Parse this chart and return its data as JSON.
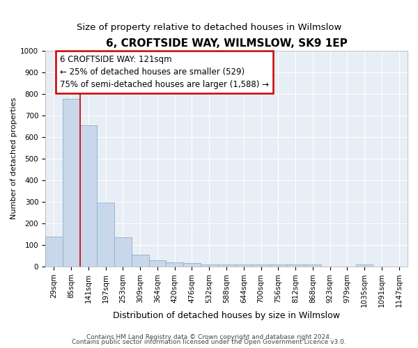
{
  "title": "6, CROFTSIDE WAY, WILMSLOW, SK9 1EP",
  "subtitle": "Size of property relative to detached houses in Wilmslow",
  "xlabel": "Distribution of detached houses by size in Wilmslow",
  "ylabel": "Number of detached properties",
  "bar_labels": [
    "29sqm",
    "85sqm",
    "141sqm",
    "197sqm",
    "253sqm",
    "309sqm",
    "364sqm",
    "420sqm",
    "476sqm",
    "532sqm",
    "588sqm",
    "644sqm",
    "700sqm",
    "756sqm",
    "812sqm",
    "868sqm",
    "923sqm",
    "979sqm",
    "1035sqm",
    "1091sqm",
    "1147sqm"
  ],
  "bar_values": [
    140,
    775,
    655,
    295,
    135,
    55,
    30,
    18,
    15,
    8,
    8,
    8,
    8,
    8,
    8,
    8,
    0,
    0,
    8,
    0,
    0
  ],
  "bar_color": "#c8d8ea",
  "bar_edge_color": "#8aaec8",
  "vline_x": 1.5,
  "vline_color": "#cc0000",
  "annotation_text": "6 CROFTSIDE WAY: 121sqm\n← 25% of detached houses are smaller (529)\n75% of semi-detached houses are larger (1,588) →",
  "annotation_box_facecolor": "#ffffff",
  "annotation_box_edgecolor": "#cc0000",
  "ylim": [
    0,
    1000
  ],
  "yticks": [
    0,
    100,
    200,
    300,
    400,
    500,
    600,
    700,
    800,
    900,
    1000
  ],
  "footer1": "Contains HM Land Registry data © Crown copyright and database right 2024.",
  "footer2": "Contains public sector information licensed under the Open Government Licence v3.0.",
  "fig_facecolor": "#ffffff",
  "plot_facecolor": "#e8eef5",
  "grid_color": "#ffffff",
  "title_fontsize": 11,
  "subtitle_fontsize": 9.5,
  "ylabel_fontsize": 8,
  "xlabel_fontsize": 9,
  "tick_fontsize": 7.5,
  "footer_fontsize": 6.5,
  "ann_fontsize": 8.5
}
